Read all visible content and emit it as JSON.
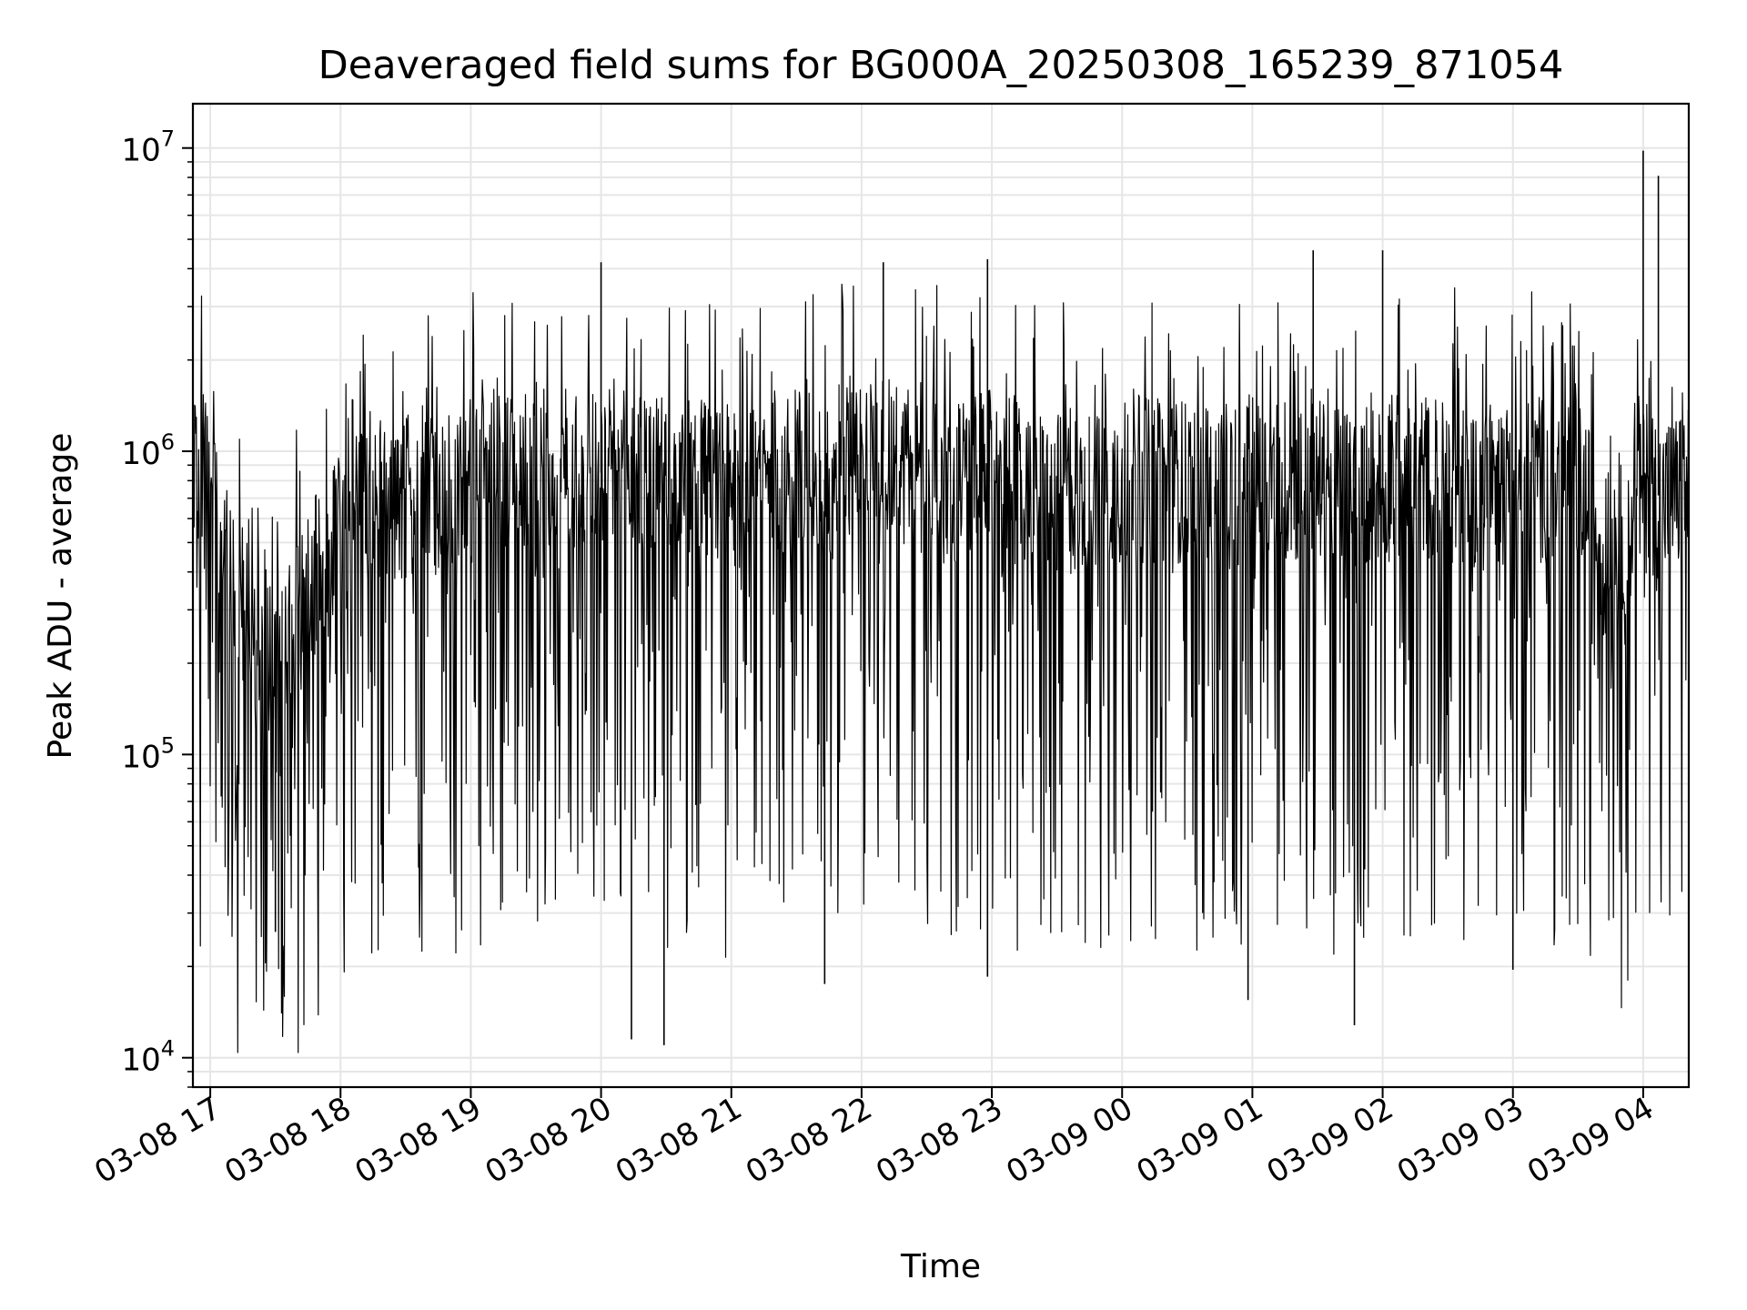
{
  "chart_data": {
    "type": "line",
    "title": "Deaveraged field sums for BG000A_20250308_165239_871054",
    "xlabel": "Time",
    "ylabel": "Peak ADU - average",
    "yscale": "log",
    "ylim": [
      8000,
      14000000
    ],
    "xlim": [
      "2025-03-08 16:52",
      "2025-03-09 04:21"
    ],
    "grid": true,
    "x_ticks": [
      {
        "t": "2025-03-08 17:00",
        "label": "03-08 17"
      },
      {
        "t": "2025-03-08 18:00",
        "label": "03-08 18"
      },
      {
        "t": "2025-03-08 19:00",
        "label": "03-08 19"
      },
      {
        "t": "2025-03-08 20:00",
        "label": "03-08 20"
      },
      {
        "t": "2025-03-08 21:00",
        "label": "03-08 21"
      },
      {
        "t": "2025-03-08 22:00",
        "label": "03-08 22"
      },
      {
        "t": "2025-03-08 23:00",
        "label": "03-08 23"
      },
      {
        "t": "2025-03-09 00:00",
        "label": "03-09 00"
      },
      {
        "t": "2025-03-09 01:00",
        "label": "03-09 01"
      },
      {
        "t": "2025-03-09 02:00",
        "label": "03-09 02"
      },
      {
        "t": "2025-03-09 03:00",
        "label": "03-09 03"
      },
      {
        "t": "2025-03-09 04:00",
        "label": "03-09 04"
      }
    ],
    "y_ticks": [
      {
        "value": 10000,
        "base": "10",
        "exp": "4"
      },
      {
        "value": 100000,
        "base": "10",
        "exp": "5"
      },
      {
        "value": 1000000,
        "base": "10",
        "exp": "6"
      },
      {
        "value": 10000000,
        "base": "10",
        "exp": "7"
      }
    ],
    "series": [
      {
        "color": "#000000",
        "x": [
          "2025-03-08 16:52",
          "2025-03-08 17:00",
          "2025-03-08 17:10",
          "2025-03-08 17:20",
          "2025-03-08 17:30",
          "2025-03-08 17:40",
          "2025-03-08 17:50",
          "2025-03-08 18:00",
          "2025-03-08 18:15",
          "2025-03-08 18:30",
          "2025-03-08 18:45",
          "2025-03-08 19:00",
          "2025-03-08 19:15",
          "2025-03-08 19:30",
          "2025-03-08 19:45",
          "2025-03-08 20:00",
          "2025-03-08 20:15",
          "2025-03-08 20:30",
          "2025-03-08 20:45",
          "2025-03-08 21:00",
          "2025-03-08 21:15",
          "2025-03-08 21:30",
          "2025-03-08 21:45",
          "2025-03-08 22:00",
          "2025-03-08 22:15",
          "2025-03-08 22:30",
          "2025-03-08 22:45",
          "2025-03-08 23:00",
          "2025-03-08 23:15",
          "2025-03-08 23:30",
          "2025-03-08 23:45",
          "2025-03-09 00:00",
          "2025-03-09 00:15",
          "2025-03-09 00:30",
          "2025-03-09 00:45",
          "2025-03-09 01:00",
          "2025-03-09 01:15",
          "2025-03-09 01:30",
          "2025-03-09 01:45",
          "2025-03-09 02:00",
          "2025-03-09 02:15",
          "2025-03-09 02:30",
          "2025-03-09 02:45",
          "2025-03-09 03:00",
          "2025-03-09 03:15",
          "2025-03-09 03:30",
          "2025-03-09 03:45",
          "2025-03-09 04:00",
          "2025-03-09 04:10",
          "2025-03-09 04:21"
        ],
        "y": [
          750000,
          900000,
          350000,
          250000,
          200000,
          280000,
          400000,
          550000,
          650000,
          700000,
          700000,
          800000,
          850000,
          900000,
          900000,
          850000,
          850000,
          800000,
          800000,
          750000,
          850000,
          850000,
          800000,
          1100000,
          950000,
          800000,
          800000,
          850000,
          750000,
          700000,
          750000,
          800000,
          800000,
          800000,
          750000,
          800000,
          800000,
          800000,
          750000,
          800000,
          850000,
          800000,
          750000,
          800000,
          800000,
          800000,
          400000,
          750000,
          700000,
          750000
        ],
        "spikes_max": [
          {
            "t": "2025-03-09 04:00",
            "y": 9800000
          },
          {
            "t": "2025-03-09 04:07",
            "y": 8100000
          },
          {
            "t": "2025-03-09 01:28",
            "y": 4600000
          },
          {
            "t": "2025-03-09 02:00",
            "y": 4600000
          },
          {
            "t": "2025-03-08 22:58",
            "y": 4300000
          },
          {
            "t": "2025-03-08 22:10",
            "y": 4200000
          },
          {
            "t": "2025-03-08 20:00",
            "y": 4200000
          }
        ],
        "spikes_min": [
          {
            "t": "2025-03-08 20:14",
            "y": 11500
          },
          {
            "t": "2025-03-08 20:29",
            "y": 11000
          },
          {
            "t": "2025-03-09 01:47",
            "y": 12800
          },
          {
            "t": "2025-03-09 00:58",
            "y": 15500
          },
          {
            "t": "2025-03-08 21:43",
            "y": 17500
          },
          {
            "t": "2025-03-08 22:58",
            "y": 18500
          },
          {
            "t": "2025-03-09 03:00",
            "y": 19500
          },
          {
            "t": "2025-03-08 17:30",
            "y": 26000
          }
        ]
      }
    ]
  }
}
